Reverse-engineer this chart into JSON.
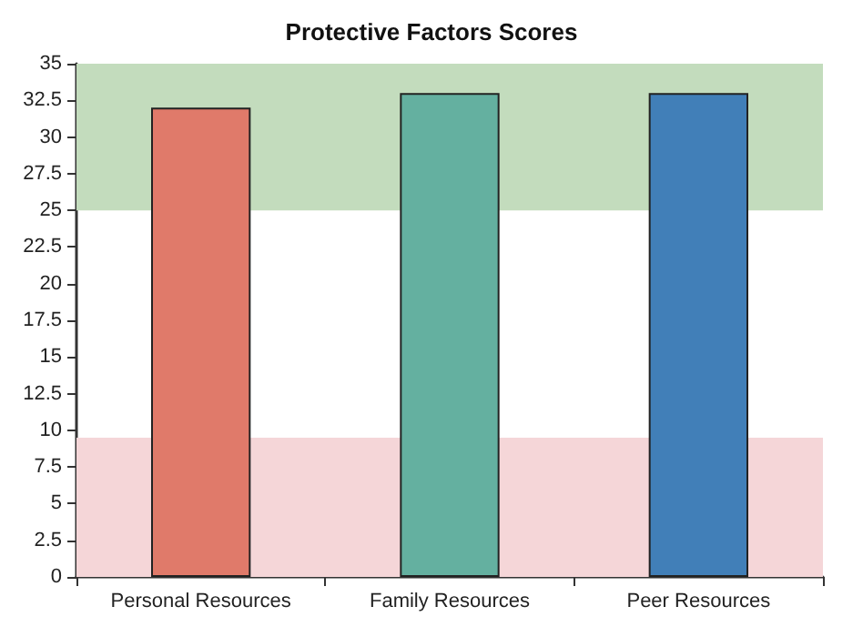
{
  "chart_data": {
    "type": "bar",
    "title": "Protective Factors Scores",
    "categories": [
      "Personal Resources",
      "Family Resources",
      "Peer Resources"
    ],
    "values": [
      32,
      33,
      33
    ],
    "colors": [
      "#e07a6a",
      "#64b0a0",
      "#417fb8"
    ],
    "ylim": [
      0,
      35
    ],
    "yticks": [
      0,
      2.5,
      5,
      7.5,
      10,
      12.5,
      15,
      17.5,
      20,
      22.5,
      25,
      27.5,
      30,
      32.5,
      35
    ],
    "bands": [
      {
        "axis": "y",
        "from": 25,
        "to": 35,
        "color": "#c3dcbd"
      },
      {
        "axis": "y",
        "from": 0,
        "to": 9.5,
        "color": "#f5d6d8"
      }
    ]
  }
}
